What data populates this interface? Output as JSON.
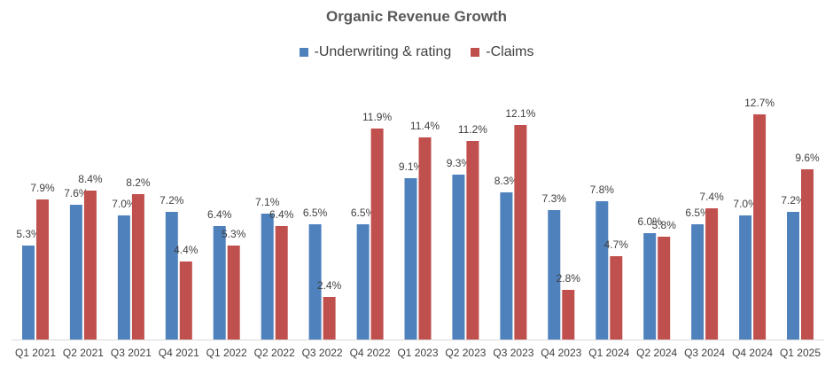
{
  "chart_data": {
    "type": "bar",
    "title": "Organic Revenue Growth",
    "xlabel": "",
    "ylabel": "",
    "ylim": [
      0,
      14
    ],
    "grid": false,
    "legend_position": "top-center",
    "categories": [
      "Q1 2021",
      "Q2 2021",
      "Q3 2021",
      "Q4 2021",
      "Q1 2022",
      "Q2 2022",
      "Q3 2022",
      "Q4 2022",
      "Q1 2023",
      "Q2 2023",
      "Q3 2023",
      "Q4 2023",
      "Q1 2024",
      "Q2 2024",
      "Q3 2024",
      "Q4 2024",
      "Q1 2025"
    ],
    "series": [
      {
        "name": "-Underwriting & rating",
        "color": "#4f81bd",
        "values": [
          5.3,
          7.6,
          7.0,
          7.2,
          6.4,
          7.1,
          6.5,
          6.5,
          9.1,
          9.3,
          8.3,
          7.3,
          7.8,
          6.0,
          6.5,
          7.0,
          7.2
        ],
        "labels": [
          "5.3%",
          "7.6%",
          "7.0%",
          "7.2%",
          "6.4%",
          "7.1%",
          "6.5%",
          "6.5%",
          "9.1%",
          "9.3%",
          "8.3%",
          "7.3%",
          "7.8%",
          "6.0%",
          "6.5%",
          "7.0%",
          "7.2%"
        ]
      },
      {
        "name": "-Claims",
        "color": "#c0504d",
        "values": [
          7.9,
          8.4,
          8.2,
          4.4,
          5.3,
          6.4,
          2.4,
          11.9,
          11.4,
          11.2,
          12.1,
          2.8,
          4.7,
          5.8,
          7.4,
          12.7,
          9.6
        ],
        "labels": [
          "7.9%",
          "8.4%",
          "8.2%",
          "4.4%",
          "5.3%",
          "6.4%",
          "2.4%",
          "11.9%",
          "11.4%",
          "11.2%",
          "12.1%",
          "2.8%",
          "4.7%",
          "5.8%",
          "7.4%",
          "12.7%",
          "9.6%"
        ]
      }
    ]
  }
}
